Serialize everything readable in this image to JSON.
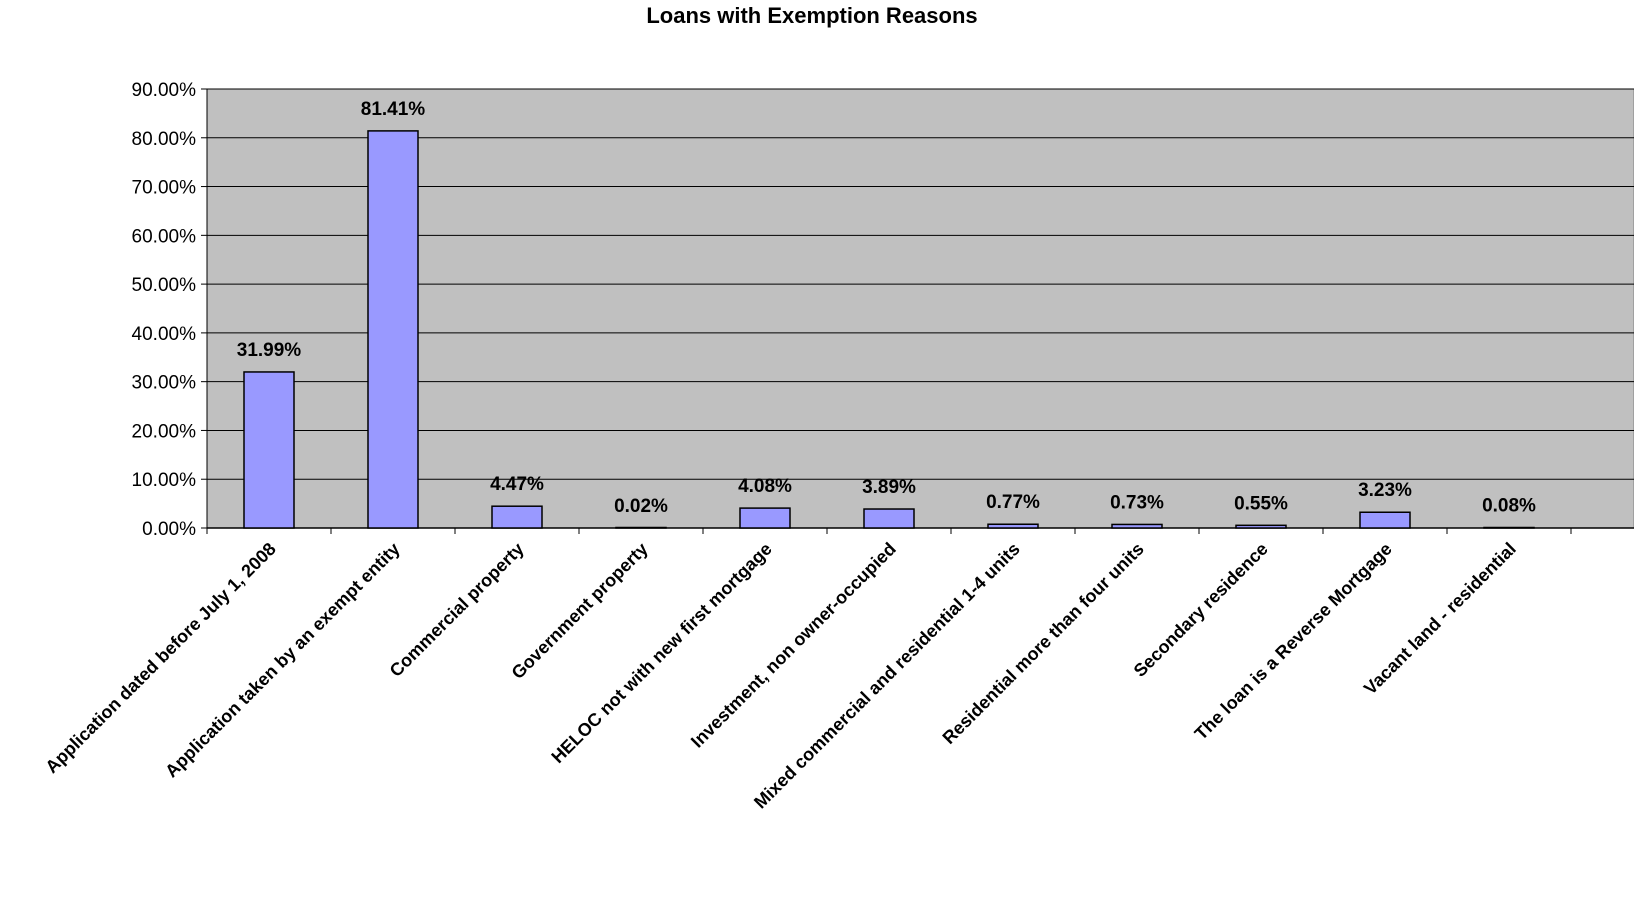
{
  "chart_data": {
    "type": "bar",
    "title": "Loans with Exemption Reasons",
    "xlabel": "",
    "ylabel": "",
    "categories": [
      "Application dated before July 1, 2008",
      "Application taken by an exempt entity",
      "Commercial property",
      "Government property",
      "HELOC not with new first mortgage",
      "Investment, non owner-occupied",
      "Mixed commercial and residential 1-4 units",
      "Residential more than four units",
      "Secondary residence",
      "The loan is a Reverse Mortgage",
      "Vacant land - residential"
    ],
    "values": [
      31.99,
      81.41,
      4.47,
      0.02,
      4.08,
      3.89,
      0.77,
      0.73,
      0.55,
      3.23,
      0.08
    ],
    "data_labels": [
      "31.99%",
      "81.41%",
      "4.47%",
      "0.02%",
      "4.08%",
      "3.89%",
      "0.77%",
      "0.73%",
      "0.55%",
      "3.23%",
      "0.08%"
    ],
    "y_tick_labels": [
      "0.00%",
      "10.00%",
      "20.00%",
      "30.00%",
      "40.00%",
      "50.00%",
      "60.00%",
      "70.00%",
      "80.00%",
      "90.00%"
    ],
    "ylim": [
      0,
      90
    ],
    "y_step": 10,
    "grid": true,
    "legend": "none",
    "colors": {
      "bar_fill": "#9999FF",
      "bar_stroke": "#000000",
      "plot_background": "#C0C0C0",
      "gridline": "#000000"
    }
  }
}
